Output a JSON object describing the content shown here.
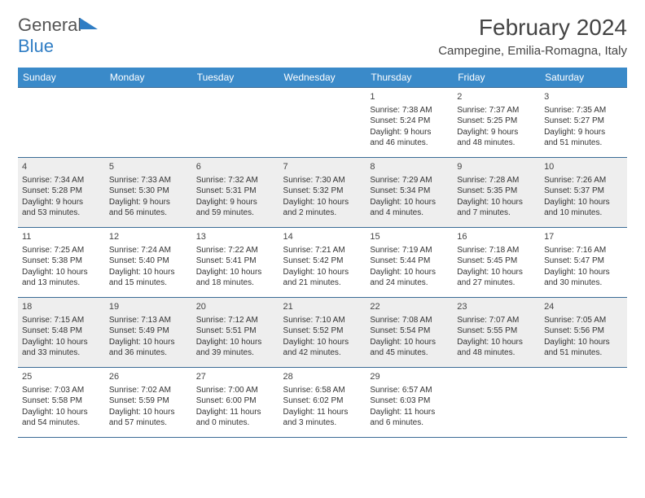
{
  "brand": {
    "general": "General",
    "blue": "Blue"
  },
  "title": {
    "month": "February 2024",
    "location": "Campegine, Emilia-Romagna, Italy"
  },
  "colors": {
    "header_bg": "#3a8ac9",
    "header_text": "#ffffff",
    "row_border": "#3a6b95",
    "even_row_bg": "#eeeeee",
    "brand_blue": "#2f7dc4"
  },
  "weekdays": [
    "Sunday",
    "Monday",
    "Tuesday",
    "Wednesday",
    "Thursday",
    "Friday",
    "Saturday"
  ],
  "weeks": [
    [
      null,
      null,
      null,
      null,
      {
        "n": "1",
        "sr": "Sunrise: 7:38 AM",
        "ss": "Sunset: 5:24 PM",
        "d1": "Daylight: 9 hours",
        "d2": "and 46 minutes."
      },
      {
        "n": "2",
        "sr": "Sunrise: 7:37 AM",
        "ss": "Sunset: 5:25 PM",
        "d1": "Daylight: 9 hours",
        "d2": "and 48 minutes."
      },
      {
        "n": "3",
        "sr": "Sunrise: 7:35 AM",
        "ss": "Sunset: 5:27 PM",
        "d1": "Daylight: 9 hours",
        "d2": "and 51 minutes."
      }
    ],
    [
      {
        "n": "4",
        "sr": "Sunrise: 7:34 AM",
        "ss": "Sunset: 5:28 PM",
        "d1": "Daylight: 9 hours",
        "d2": "and 53 minutes."
      },
      {
        "n": "5",
        "sr": "Sunrise: 7:33 AM",
        "ss": "Sunset: 5:30 PM",
        "d1": "Daylight: 9 hours",
        "d2": "and 56 minutes."
      },
      {
        "n": "6",
        "sr": "Sunrise: 7:32 AM",
        "ss": "Sunset: 5:31 PM",
        "d1": "Daylight: 9 hours",
        "d2": "and 59 minutes."
      },
      {
        "n": "7",
        "sr": "Sunrise: 7:30 AM",
        "ss": "Sunset: 5:32 PM",
        "d1": "Daylight: 10 hours",
        "d2": "and 2 minutes."
      },
      {
        "n": "8",
        "sr": "Sunrise: 7:29 AM",
        "ss": "Sunset: 5:34 PM",
        "d1": "Daylight: 10 hours",
        "d2": "and 4 minutes."
      },
      {
        "n": "9",
        "sr": "Sunrise: 7:28 AM",
        "ss": "Sunset: 5:35 PM",
        "d1": "Daylight: 10 hours",
        "d2": "and 7 minutes."
      },
      {
        "n": "10",
        "sr": "Sunrise: 7:26 AM",
        "ss": "Sunset: 5:37 PM",
        "d1": "Daylight: 10 hours",
        "d2": "and 10 minutes."
      }
    ],
    [
      {
        "n": "11",
        "sr": "Sunrise: 7:25 AM",
        "ss": "Sunset: 5:38 PM",
        "d1": "Daylight: 10 hours",
        "d2": "and 13 minutes."
      },
      {
        "n": "12",
        "sr": "Sunrise: 7:24 AM",
        "ss": "Sunset: 5:40 PM",
        "d1": "Daylight: 10 hours",
        "d2": "and 15 minutes."
      },
      {
        "n": "13",
        "sr": "Sunrise: 7:22 AM",
        "ss": "Sunset: 5:41 PM",
        "d1": "Daylight: 10 hours",
        "d2": "and 18 minutes."
      },
      {
        "n": "14",
        "sr": "Sunrise: 7:21 AM",
        "ss": "Sunset: 5:42 PM",
        "d1": "Daylight: 10 hours",
        "d2": "and 21 minutes."
      },
      {
        "n": "15",
        "sr": "Sunrise: 7:19 AM",
        "ss": "Sunset: 5:44 PM",
        "d1": "Daylight: 10 hours",
        "d2": "and 24 minutes."
      },
      {
        "n": "16",
        "sr": "Sunrise: 7:18 AM",
        "ss": "Sunset: 5:45 PM",
        "d1": "Daylight: 10 hours",
        "d2": "and 27 minutes."
      },
      {
        "n": "17",
        "sr": "Sunrise: 7:16 AM",
        "ss": "Sunset: 5:47 PM",
        "d1": "Daylight: 10 hours",
        "d2": "and 30 minutes."
      }
    ],
    [
      {
        "n": "18",
        "sr": "Sunrise: 7:15 AM",
        "ss": "Sunset: 5:48 PM",
        "d1": "Daylight: 10 hours",
        "d2": "and 33 minutes."
      },
      {
        "n": "19",
        "sr": "Sunrise: 7:13 AM",
        "ss": "Sunset: 5:49 PM",
        "d1": "Daylight: 10 hours",
        "d2": "and 36 minutes."
      },
      {
        "n": "20",
        "sr": "Sunrise: 7:12 AM",
        "ss": "Sunset: 5:51 PM",
        "d1": "Daylight: 10 hours",
        "d2": "and 39 minutes."
      },
      {
        "n": "21",
        "sr": "Sunrise: 7:10 AM",
        "ss": "Sunset: 5:52 PM",
        "d1": "Daylight: 10 hours",
        "d2": "and 42 minutes."
      },
      {
        "n": "22",
        "sr": "Sunrise: 7:08 AM",
        "ss": "Sunset: 5:54 PM",
        "d1": "Daylight: 10 hours",
        "d2": "and 45 minutes."
      },
      {
        "n": "23",
        "sr": "Sunrise: 7:07 AM",
        "ss": "Sunset: 5:55 PM",
        "d1": "Daylight: 10 hours",
        "d2": "and 48 minutes."
      },
      {
        "n": "24",
        "sr": "Sunrise: 7:05 AM",
        "ss": "Sunset: 5:56 PM",
        "d1": "Daylight: 10 hours",
        "d2": "and 51 minutes."
      }
    ],
    [
      {
        "n": "25",
        "sr": "Sunrise: 7:03 AM",
        "ss": "Sunset: 5:58 PM",
        "d1": "Daylight: 10 hours",
        "d2": "and 54 minutes."
      },
      {
        "n": "26",
        "sr": "Sunrise: 7:02 AM",
        "ss": "Sunset: 5:59 PM",
        "d1": "Daylight: 10 hours",
        "d2": "and 57 minutes."
      },
      {
        "n": "27",
        "sr": "Sunrise: 7:00 AM",
        "ss": "Sunset: 6:00 PM",
        "d1": "Daylight: 11 hours",
        "d2": "and 0 minutes."
      },
      {
        "n": "28",
        "sr": "Sunrise: 6:58 AM",
        "ss": "Sunset: 6:02 PM",
        "d1": "Daylight: 11 hours",
        "d2": "and 3 minutes."
      },
      {
        "n": "29",
        "sr": "Sunrise: 6:57 AM",
        "ss": "Sunset: 6:03 PM",
        "d1": "Daylight: 11 hours",
        "d2": "and 6 minutes."
      },
      null,
      null
    ]
  ]
}
